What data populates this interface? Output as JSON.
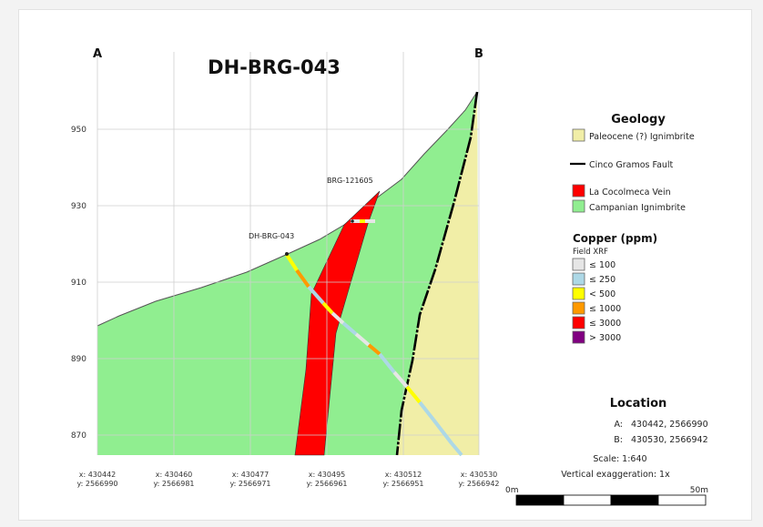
{
  "section": {
    "title": "DH-BRG-043",
    "end_left": "A",
    "end_right": "B",
    "elevation_ticks": [
      "950",
      "930",
      "910",
      "890",
      "870"
    ],
    "x_ticks": [
      {
        "x": "x: 430442",
        "y": "y: 2566990"
      },
      {
        "x": "x: 430460",
        "y": "y: 2566981"
      },
      {
        "x": "x: 430477",
        "y": "y: 2566971"
      },
      {
        "x": "x: 430495",
        "y": "y: 2566961"
      },
      {
        "x": "x: 430512",
        "y": "y: 2566951"
      },
      {
        "x": "x: 430530",
        "y": "y: 2566942"
      }
    ],
    "drillhole_label": "DH-BRG-043",
    "sample_label": "BRG-121605"
  },
  "colors": {
    "campanian": "#90ee90",
    "vein": "#ff0000",
    "paleocene": "#f1eea7",
    "fault": "#000000",
    "cu_100": "#e6e6e6",
    "cu_250": "#add8e6",
    "cu_lt500": "#ffff00",
    "cu_1000": "#ff9900",
    "cu_3000": "#ff0000",
    "cu_gt3000": "#800080"
  },
  "legend": {
    "geology_title": "Geology",
    "paleocene": "Paleocene (?) Ignimbrite",
    "fault": "Cinco Gramos Fault",
    "vein": "La Cocolmeca Vein",
    "campanian": "Campanian Ignimbrite",
    "copper_title": "Copper (ppm)",
    "copper_subtitle": "Field XRF",
    "copper_items": [
      "≤ 100",
      "≤ 250",
      "< 500",
      "≤ 1000",
      "≤ 3000",
      "> 3000"
    ]
  },
  "location": {
    "title": "Location",
    "a_label": "A:",
    "a_value": "430442, 2566990",
    "b_label": "B:",
    "b_value": "430530, 2566942",
    "scale": "Scale: 1:640",
    "exaggeration": "Vertical exaggeration: 1x",
    "bar_start": "0m",
    "bar_end": "50m"
  }
}
